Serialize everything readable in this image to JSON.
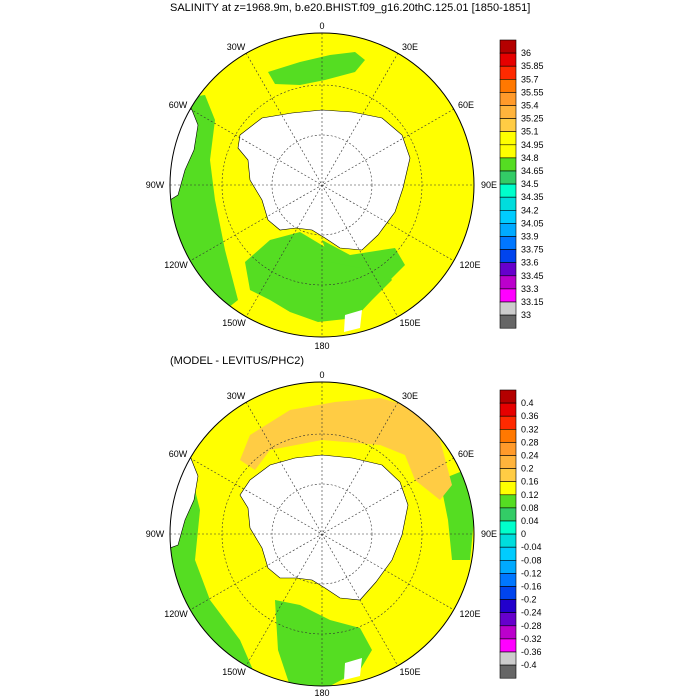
{
  "panel1": {
    "title": "SALINITY at z=1968.9m, b.e20.BHIST.f09_g16.20thC.125.01 [1850-1851]",
    "lon_labels": {
      "top": "0",
      "upper_left": "30W",
      "upper_right": "30E",
      "left_upper": "60W",
      "right_upper": "60E",
      "left": "90W",
      "right": "90E",
      "left_lower": "120W",
      "right_lower": "120E",
      "lower_left": "150W",
      "lower_right": "150E",
      "bottom": "180"
    },
    "colorbar": {
      "labels": [
        "36",
        "35.85",
        "35.7",
        "35.55",
        "35.4",
        "35.25",
        "35.1",
        "34.95",
        "34.8",
        "34.65",
        "34.5",
        "34.35",
        "34.2",
        "34.05",
        "33.9",
        "33.75",
        "33.6",
        "33.45",
        "33.3",
        "33.15",
        "33"
      ],
      "colors": [
        "#b40000",
        "#e60000",
        "#ff2a00",
        "#ff7800",
        "#ff9a2a",
        "#ffb43c",
        "#ffcc44",
        "#ffff00",
        "#ffff00",
        "#55dd22",
        "#33cc66",
        "#00ffcc",
        "#00dddd",
        "#00ccff",
        "#00aaff",
        "#0077ff",
        "#0044ee",
        "#6600cc",
        "#bb00cc",
        "#ff00ff",
        "#cccccc",
        "#666666"
      ]
    }
  },
  "panel2": {
    "title": "(MODEL - LEVITUS/PHC2)",
    "lon_labels": {
      "top": "0",
      "upper_left": "30W",
      "upper_right": "30E",
      "left_upper": "60W",
      "right_upper": "60E",
      "left": "90W",
      "right": "90E",
      "left_lower": "120W",
      "right_lower": "120E",
      "lower_left": "150W",
      "lower_right": "150E",
      "bottom": "180"
    },
    "colorbar": {
      "labels": [
        "0.4",
        "0.36",
        "0.32",
        "0.28",
        "0.24",
        "0.2",
        "0.16",
        "0.12",
        "0.08",
        "0.04",
        "0",
        "-0.04",
        "-0.08",
        "-0.12",
        "-0.16",
        "-0.2",
        "-0.24",
        "-0.28",
        "-0.32",
        "-0.36",
        "-0.4"
      ],
      "colors": [
        "#b40000",
        "#e60000",
        "#ff2a00",
        "#ff7800",
        "#ff9a2a",
        "#ffb43c",
        "#ffcc44",
        "#ffff00",
        "#55dd22",
        "#33cc66",
        "#00ffcc",
        "#00dddd",
        "#00ccff",
        "#00aaff",
        "#0077ff",
        "#0044ee",
        "#2200cc",
        "#6600cc",
        "#bb00cc",
        "#ff00ff",
        "#cccccc",
        "#666666"
      ]
    }
  },
  "map_colors": {
    "yellow": "#ffff00",
    "green": "#55dd22",
    "orange": "#ffcc44",
    "land": "#ffffff"
  }
}
